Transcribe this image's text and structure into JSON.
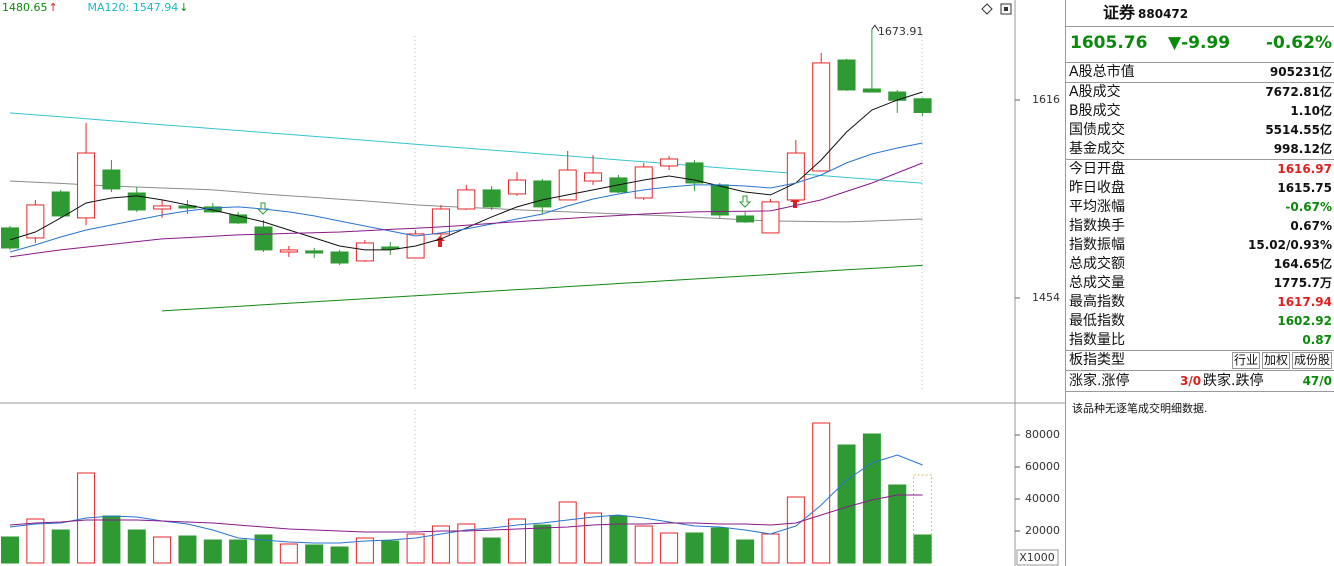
{
  "chart_data": [
    {
      "type": "candlestick",
      "header_labels": [
        {
          "text": "1480.65",
          "arrow": "↑",
          "color": "#0a8a0a",
          "arrow_color": "#e0201e"
        },
        {
          "text": "MA120: 1547.94",
          "arrow": "↓",
          "color": "#1cb8c4",
          "arrow_color": "#0a8a0a"
        }
      ],
      "categories": [
        null,
        null,
        null,
        null,
        null,
        null,
        null,
        null,
        null,
        null,
        null,
        null,
        null,
        null,
        null,
        null,
        null,
        null,
        null,
        null,
        null,
        null,
        null,
        null,
        null,
        null,
        null,
        null,
        null,
        null,
        null,
        null,
        null,
        null,
        null,
        null,
        null
      ],
      "open": [
        1511.3,
        1503.1,
        1540.7,
        1519.5,
        1558.7,
        1539.9,
        1526.8,
        1529.3,
        1528.5,
        1521.9,
        1512.1,
        1491.6,
        1492.5,
        1491.6,
        1484.3,
        1495.7,
        1486.7,
        1506.4,
        1526.8,
        1542.4,
        1539.1,
        1549.7,
        1534.2,
        1549.7,
        1552.2,
        1535.8,
        1562.0,
        1564.5,
        1546.5,
        1521.1,
        1507.2,
        1534.2,
        1557.9,
        1648.7,
        1625.0,
        1622.5,
        1616.97
      ],
      "high": [
        1512.9,
        1534.2,
        1542.4,
        1597.2,
        1566.9,
        1544.8,
        1534.2,
        1534.2,
        1531.7,
        1524.4,
        1517.8,
        1496.5,
        1494.9,
        1493.3,
        1501.5,
        1499.8,
        1509.6,
        1530.1,
        1546.5,
        1545.6,
        1557.1,
        1551.4,
        1574.3,
        1571.0,
        1554.6,
        1564.5,
        1570.2,
        1566.9,
        1548.1,
        1524.4,
        1535.0,
        1583.3,
        1654.5,
        1649.6,
        1673.91,
        1624.2,
        1617.94
      ],
      "low": [
        1493.3,
        1499.0,
        1519.5,
        1513.7,
        1540.7,
        1524.4,
        1519.5,
        1522.7,
        1523.5,
        1514.5,
        1491.6,
        1487.5,
        1486.7,
        1481.0,
        1483.5,
        1489.2,
        1486.7,
        1501.5,
        1526.0,
        1526.0,
        1537.5,
        1522.7,
        1534.2,
        1546.5,
        1539.9,
        1534.2,
        1558.7,
        1541.6,
        1519.5,
        1515.4,
        1507.2,
        1534.2,
        1557.9,
        1623.4,
        1622.5,
        1605.4,
        1602.92
      ],
      "close": [
        1494.9,
        1530.1,
        1521.1,
        1572.6,
        1543.2,
        1526.0,
        1529.3,
        1527.6,
        1524.4,
        1515.4,
        1493.3,
        1493.3,
        1490.8,
        1482.6,
        1499.0,
        1494.1,
        1506.4,
        1526.8,
        1542.4,
        1528.5,
        1550.5,
        1528.5,
        1558.7,
        1556.3,
        1540.7,
        1561.2,
        1567.7,
        1548.1,
        1521.9,
        1516.2,
        1532.6,
        1572.6,
        1646.3,
        1624.2,
        1622.5,
        1615.75,
        1605.76
      ],
      "up_color": "#e8262a",
      "down_color": "#2f9a33",
      "series": [
        {
          "color": "#111111",
          "values": [
            1501.5,
            1508.0,
            1519.5,
            1531.7,
            1535.8,
            1537.5,
            1534.2,
            1530.1,
            1526.0,
            1521.1,
            1516.2,
            1509.6,
            1503.1,
            1496.5,
            1493.3,
            1493.3,
            1496.5,
            1502.3,
            1511.3,
            1520.3,
            1528.5,
            1534.2,
            1538.3,
            1542.4,
            1546.5,
            1550.5,
            1553.8,
            1550.5,
            1545.6,
            1540.7,
            1538.3,
            1548.1,
            1566.9,
            1589.8,
            1607.8,
            1616.0,
            1622.5
          ]
        },
        {
          "color": "#2a74d0",
          "values": [
            1491.6,
            1497.4,
            1503.9,
            1509.6,
            1513.7,
            1517.8,
            1521.9,
            1525.2,
            1527.6,
            1528.5,
            1526.8,
            1524.4,
            1521.1,
            1517.0,
            1512.9,
            1508.8,
            1504.7,
            1507.2,
            1510.5,
            1514.5,
            1518.6,
            1522.7,
            1529.3,
            1535.0,
            1539.1,
            1542.4,
            1544.8,
            1546.5,
            1546.5,
            1545.6,
            1544.0,
            1548.1,
            1554.6,
            1564.5,
            1571.8,
            1576.7,
            1580.8
          ]
        },
        {
          "color": "#8a1a8a",
          "values": [
            1487.6,
            1490.5,
            1493.3,
            1495.6,
            1497.8,
            1500.1,
            1502.3,
            1503.4,
            1504.5,
            1505.6,
            1506.2,
            1506.8,
            1507.4,
            1508.0,
            1509.0,
            1510.1,
            1511.1,
            1512.1,
            1513.5,
            1515.0,
            1516.4,
            1517.8,
            1519.0,
            1520.3,
            1521.5,
            1522.7,
            1523.6,
            1524.4,
            1524.7,
            1525.0,
            1525.2,
            1529.7,
            1534.2,
            1541.2,
            1548.1,
            1556.3,
            1564.5
          ]
        },
        {
          "color": "#8c8c8c",
          "values": [
            1549.7,
            1548.7,
            1547.7,
            1546.6,
            1545.6,
            1544.8,
            1544.0,
            1543.2,
            1542.4,
            1540.8,
            1539.1,
            1537.7,
            1536.3,
            1534.8,
            1533.4,
            1531.8,
            1530.1,
            1529.1,
            1528.1,
            1527.2,
            1526.2,
            1525.2,
            1524.4,
            1523.6,
            1522.8,
            1521.9,
            1521.1,
            1520.1,
            1519.0,
            1518.0,
            1517.0,
            1516.7,
            1516.5,
            1516.2,
            1517.0,
            1517.8,
            1518.6
          ]
        },
        {
          "color": "#35c6d0",
          "values": [
            1605.4,
            1603.8,
            1602.2,
            1600.6,
            1599.0,
            1597.4,
            1595.8,
            1594.2,
            1592.6,
            1591.0,
            1589.4,
            1587.8,
            1586.2,
            1584.6,
            1583.0,
            1581.4,
            1579.8,
            1578.2,
            1576.6,
            1575.0,
            1573.4,
            1571.8,
            1570.2,
            1568.6,
            1567.0,
            1565.4,
            1563.8,
            1562.2,
            1560.6,
            1559.0,
            1557.4,
            1555.8,
            1554.2,
            1552.6,
            1551.0,
            1549.4,
            1547.94
          ]
        },
        {
          "color": "#118a11",
          "values": [
            null,
            null,
            null,
            null,
            null,
            null,
            1443.4,
            1444.6,
            1445.9,
            1447.1,
            1448.4,
            1449.6,
            1450.9,
            1452.1,
            1453.3,
            1454.6,
            1455.8,
            1457.1,
            1458.3,
            1459.6,
            1460.8,
            1462.0,
            1463.3,
            1464.5,
            1465.8,
            1467.0,
            1468.3,
            1469.5,
            1470.7,
            1472.0,
            1473.2,
            1474.5,
            1475.7,
            1477.0,
            1478.2,
            1479.4,
            1480.65
          ]
        }
      ],
      "ylim": [
        1370.5,
        1697.8
      ],
      "yticks": [
        1454,
        1616
      ]
    },
    {
      "type": "bar",
      "categories": [
        null,
        null,
        null,
        null,
        null,
        null,
        null,
        null,
        null,
        null,
        null,
        null,
        null,
        null,
        null,
        null,
        null,
        null,
        null,
        null,
        null,
        null,
        null,
        null,
        null,
        null,
        null,
        null,
        null,
        null,
        null,
        null,
        null,
        null,
        null,
        null,
        null
      ],
      "values": [
        16250,
        27500,
        20625,
        56250,
        29375,
        20625,
        16250,
        16875,
        14375,
        14375,
        17500,
        11875,
        11250,
        10000,
        15625,
        13750,
        18125,
        23125,
        24375,
        15625,
        27500,
        23750,
        38125,
        31250,
        29375,
        23125,
        18750,
        18750,
        21875,
        14375,
        18125,
        41250,
        87500,
        73750,
        80625,
        48750,
        17500
      ],
      "estimated_value": 55000,
      "estimate_color": "#d8c060",
      "series": [
        {
          "color": "#2a74d0",
          "values": [
            22500,
            24375,
            25000,
            28125,
            29375,
            28750,
            26250,
            24375,
            20625,
            15625,
            14375,
            13125,
            12500,
            12500,
            13750,
            14375,
            15625,
            18125,
            20625,
            21875,
            23750,
            25000,
            26875,
            28750,
            30000,
            28125,
            25625,
            23125,
            22500,
            20625,
            18125,
            23125,
            36250,
            51875,
            62500,
            67500,
            61250
          ]
        },
        {
          "color": "#8a1a8a",
          "values": [
            23750,
            25000,
            25625,
            26875,
            26875,
            26875,
            26250,
            25625,
            25000,
            23750,
            22500,
            21250,
            20625,
            20000,
            19375,
            19375,
            19375,
            20000,
            20000,
            20625,
            21250,
            21875,
            22500,
            23750,
            24375,
            24375,
            25000,
            25000,
            24375,
            24375,
            23750,
            25000,
            30000,
            35000,
            39375,
            42500,
            42500
          ]
        }
      ],
      "ylim": [
        0,
        98750
      ],
      "yticks": [
        20000,
        40000,
        60000,
        80000
      ],
      "unit_label": "X1000"
    }
  ],
  "quote": {
    "name": "证券",
    "code": "880472",
    "price": "1605.76",
    "change": "▼-9.99",
    "change_pct": "-0.62%",
    "groups": [
      [
        {
          "label": "A股总市值",
          "value": "905231亿"
        }
      ],
      [
        {
          "label": "A股成交",
          "value": "7672.81亿"
        },
        {
          "label": "B股成交",
          "value": "1.10亿"
        },
        {
          "label": "国债成交",
          "value": "5514.55亿"
        },
        {
          "label": "基金成交",
          "value": "998.12亿"
        }
      ],
      [
        {
          "label": "今日开盘",
          "value": "1616.97",
          "color": "#e0201e"
        },
        {
          "label": "昨日收盘",
          "value": "1615.75"
        },
        {
          "label": "平均涨幅",
          "value": "-0.67%",
          "color": "#0a8a0a"
        },
        {
          "label": "指数换手",
          "value": "0.67%"
        },
        {
          "label": "指数振幅",
          "value": "15.02/0.93%"
        },
        {
          "label": "总成交额",
          "value": "164.65亿"
        },
        {
          "label": "总成交量",
          "value": "1775.7万"
        },
        {
          "label": "最高指数",
          "value": "1617.94",
          "color": "#e0201e"
        },
        {
          "label": "最低指数",
          "value": "1602.92",
          "color": "#0a8a0a"
        },
        {
          "label": "指数量比",
          "value": "0.87",
          "color": "#0a8a0a"
        }
      ]
    ],
    "board_type": {
      "label": "板指类型",
      "tags": [
        "行业",
        "加权",
        "成份股"
      ]
    },
    "breadth": {
      "up_label": "涨家.涨停",
      "up": "3/0",
      "down_label": "跌家.跌停",
      "down": "47/0"
    },
    "note": "该品种无逐笔成交明细数据."
  }
}
